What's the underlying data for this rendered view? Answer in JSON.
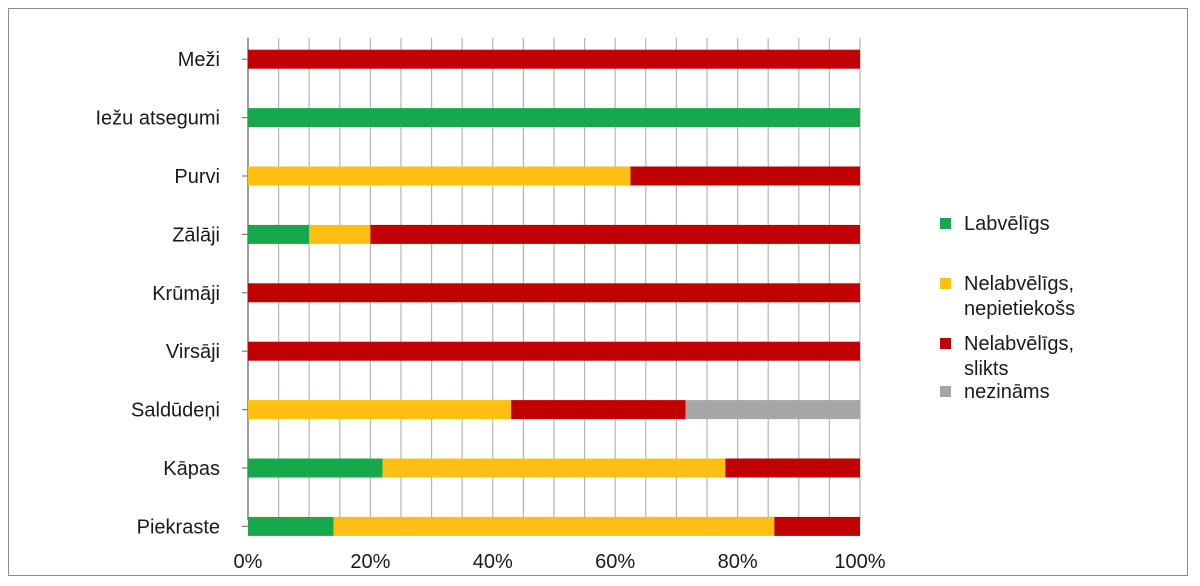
{
  "chart_data": {
    "type": "bar",
    "orientation": "horizontal",
    "stacked": "percent",
    "categories": [
      "Meži",
      "Iežu atsegumi",
      "Purvi",
      "Zālāji",
      "Krūmāji",
      "Virsāji",
      "Saldūdeņi",
      "Kāpas",
      "Piekraste"
    ],
    "series": [
      {
        "name": "Labvēlīgs",
        "color": "#17a84b",
        "values": [
          0,
          100,
          0,
          10,
          0,
          0,
          0,
          22,
          14
        ]
      },
      {
        "name": "Nelabvēlīgs, nepietiekošs",
        "color": "#ffbe14",
        "values": [
          0,
          0,
          62.5,
          10,
          0,
          0,
          43,
          56,
          72
        ]
      },
      {
        "name": "Nelabvēlīgs, slikts",
        "color": "#c00000",
        "values": [
          100,
          0,
          37.5,
          80,
          100,
          100,
          28.5,
          22,
          14
        ]
      },
      {
        "name": "nezināms",
        "color": "#a6a6a6",
        "values": [
          0,
          0,
          0,
          0,
          0,
          0,
          28.5,
          0,
          0
        ]
      }
    ],
    "legend_labels": [
      [
        "Labvēlīgs"
      ],
      [
        "Nelabvēlīgs,",
        "nepietiekošs"
      ],
      [
        "Nelabvēlīgs,",
        "slikts"
      ],
      [
        "nezināms"
      ]
    ],
    "xlim": [
      0,
      100
    ],
    "xticks": [
      "0%",
      "20%",
      "40%",
      "60%",
      "80%",
      "100%"
    ],
    "grid": true,
    "legend_position": "right"
  }
}
